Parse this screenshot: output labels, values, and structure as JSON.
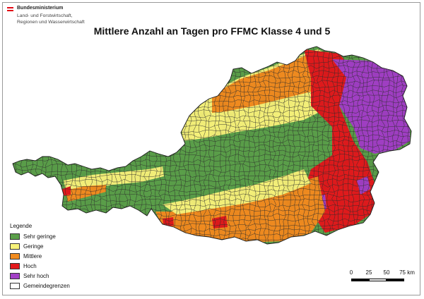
{
  "logo": {
    "title": "Bundesministerium",
    "subtitle_line1": "Land- und Forstwirtschaft,",
    "subtitle_line2": "Regionen und Wasserwirtschaft",
    "flag_colors": [
      "#e30613",
      "#ffffff",
      "#e30613"
    ]
  },
  "title": "Mittlere Anzahl an Tagen pro FFMC Klasse 4 und 5",
  "legend": {
    "title": "Legende",
    "items": [
      {
        "label": "Sehr geringe",
        "color": "#5ba04a"
      },
      {
        "label": "Geringe",
        "color": "#f7f37a"
      },
      {
        "label": "Mittlere",
        "color": "#f28c1f"
      },
      {
        "label": "Hoch",
        "color": "#e31a1c"
      },
      {
        "label": "Sehr hoch",
        "color": "#a23fc6"
      },
      {
        "label": "Gemeindegrenzen",
        "color": "#ffffff"
      }
    ]
  },
  "scalebar": {
    "labels": [
      "0",
      "25",
      "50",
      "75 km"
    ]
  },
  "map_colors": {
    "sehr_geringe": "#5ba04a",
    "geringe": "#f7f37a",
    "mittlere": "#f28c1f",
    "hoch": "#e31a1c",
    "sehr_hoch": "#a23fc6",
    "boundary": "#2b2b2b"
  }
}
